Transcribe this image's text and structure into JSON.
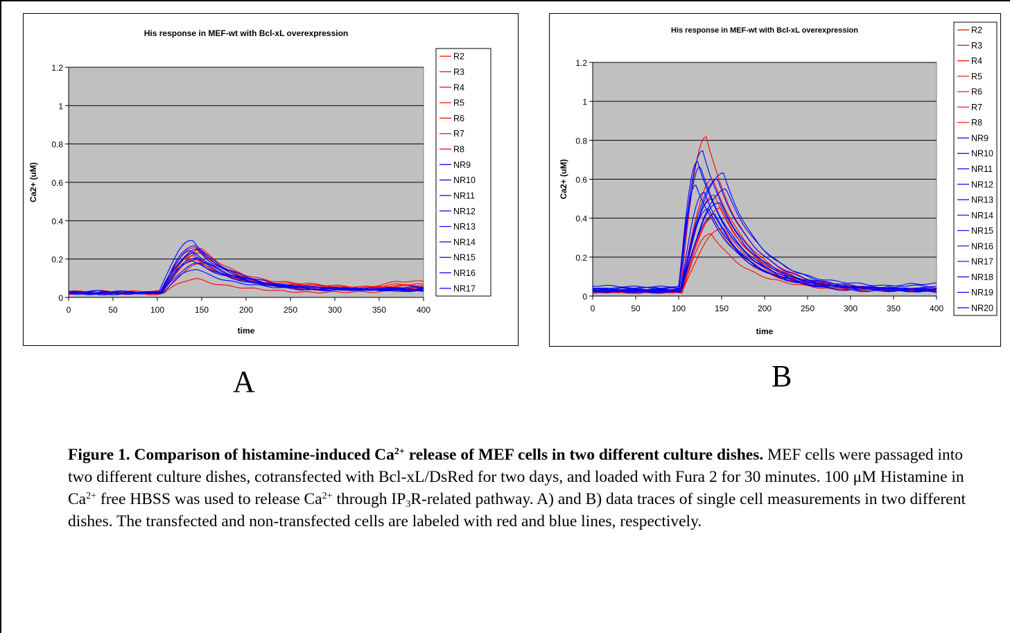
{
  "chart_data": [
    {
      "type": "line",
      "panel": "A",
      "title": "His response in MEF-wt with Bcl-xL overexpression",
      "xlabel": "time",
      "ylabel": "Ca2+ (uM)",
      "xlim": [
        0,
        400
      ],
      "ylim": [
        0,
        1.2
      ],
      "xticks": [
        "0",
        "50",
        "100",
        "150",
        "200",
        "250",
        "300",
        "350",
        "400"
      ],
      "yticks": [
        "0",
        "0.2",
        "0.4",
        "0.6",
        "0.8",
        "1",
        "1.2"
      ],
      "plot_background": "#c0c0c0",
      "gridlines": "horizontal",
      "legend_position": "right",
      "colors": {
        "transfected": "#ff0000",
        "non_transfected": "#0000ff"
      },
      "series": [
        {
          "name": "R2",
          "group": "transfected",
          "base": 0.03,
          "peak": 0.26,
          "peak_t": 143,
          "rise": 105,
          "tail": 0.05,
          "end": 0.065
        },
        {
          "name": "R3",
          "group": "transfected",
          "base": 0.025,
          "peak": 0.1,
          "peak_t": 145,
          "rise": 108,
          "tail": 0.025,
          "end": 0.035
        },
        {
          "name": "R4",
          "group": "transfected",
          "base": 0.02,
          "peak": 0.23,
          "peak_t": 150,
          "rise": 105,
          "tail": 0.04,
          "end": 0.055
        },
        {
          "name": "R5",
          "group": "transfected",
          "base": 0.03,
          "peak": 0.2,
          "peak_t": 145,
          "rise": 106,
          "tail": 0.035,
          "end": 0.05
        },
        {
          "name": "R6",
          "group": "transfected",
          "base": 0.03,
          "peak": 0.25,
          "peak_t": 150,
          "rise": 106,
          "tail": 0.055,
          "end": 0.08
        },
        {
          "name": "R7",
          "group": "transfected",
          "base": 0.025,
          "peak": 0.22,
          "peak_t": 140,
          "rise": 104,
          "tail": 0.035,
          "end": 0.045
        },
        {
          "name": "R8",
          "group": "transfected",
          "base": 0.02,
          "peak": 0.18,
          "peak_t": 155,
          "rise": 106,
          "tail": 0.05,
          "end": 0.06
        },
        {
          "name": "NR9",
          "group": "non_transfected",
          "base": 0.025,
          "peak": 0.3,
          "peak_t": 140,
          "rise": 102,
          "tail": 0.04,
          "end": 0.045
        },
        {
          "name": "NR10",
          "group": "non_transfected",
          "base": 0.03,
          "peak": 0.27,
          "peak_t": 142,
          "rise": 104,
          "tail": 0.04,
          "end": 0.045
        },
        {
          "name": "NR11",
          "group": "non_transfected",
          "base": 0.02,
          "peak": 0.25,
          "peak_t": 145,
          "rise": 104,
          "tail": 0.035,
          "end": 0.04
        },
        {
          "name": "NR12",
          "group": "non_transfected",
          "base": 0.025,
          "peak": 0.23,
          "peak_t": 143,
          "rise": 103,
          "tail": 0.04,
          "end": 0.04
        },
        {
          "name": "NR13",
          "group": "non_transfected",
          "base": 0.02,
          "peak": 0.21,
          "peak_t": 145,
          "rise": 105,
          "tail": 0.035,
          "end": 0.035
        },
        {
          "name": "NR14",
          "group": "non_transfected",
          "base": 0.03,
          "peak": 0.19,
          "peak_t": 140,
          "rise": 104,
          "tail": 0.045,
          "end": 0.05
        },
        {
          "name": "NR15",
          "group": "non_transfected",
          "base": 0.02,
          "peak": 0.18,
          "peak_t": 148,
          "rise": 105,
          "tail": 0.04,
          "end": 0.04
        },
        {
          "name": "NR16",
          "group": "non_transfected",
          "base": 0.025,
          "peak": 0.24,
          "peak_t": 138,
          "rise": 103,
          "tail": 0.04,
          "end": 0.035
        },
        {
          "name": "NR17",
          "group": "non_transfected",
          "base": 0.02,
          "peak": 0.15,
          "peak_t": 145,
          "rise": 106,
          "tail": 0.035,
          "end": 0.04
        }
      ]
    },
    {
      "type": "line",
      "panel": "B",
      "title": "His response in MEF-wt with Bcl-xL overexpression",
      "xlabel": "time",
      "ylabel": "Ca2+ (uM)",
      "xlim": [
        0,
        400
      ],
      "ylim": [
        0,
        1.2
      ],
      "xticks": [
        "0",
        "50",
        "100",
        "150",
        "200",
        "250",
        "300",
        "350",
        "400"
      ],
      "yticks": [
        "0",
        "0.2",
        "0.4",
        "0.6",
        "0.8",
        "1",
        "1.2"
      ],
      "plot_background": "#c0c0c0",
      "gridlines": "horizontal",
      "legend_position": "right",
      "colors": {
        "transfected": "#ff0000",
        "non_transfected": "#0000ff"
      },
      "series": [
        {
          "name": "R2",
          "group": "transfected",
          "base": 0.02,
          "peak": 0.82,
          "peak_t": 132,
          "rise": 102,
          "tail": 0.03,
          "end": 0.03
        },
        {
          "name": "R3",
          "group": "transfected",
          "base": 0.025,
          "peak": 0.6,
          "peak_t": 140,
          "rise": 103,
          "tail": 0.035,
          "end": 0.035
        },
        {
          "name": "R4",
          "group": "transfected",
          "base": 0.03,
          "peak": 0.52,
          "peak_t": 142,
          "rise": 103,
          "tail": 0.03,
          "end": 0.03
        },
        {
          "name": "R5",
          "group": "transfected",
          "base": 0.02,
          "peak": 0.45,
          "peak_t": 148,
          "rise": 104,
          "tail": 0.03,
          "end": 0.03
        },
        {
          "name": "R6",
          "group": "transfected",
          "base": 0.025,
          "peak": 0.4,
          "peak_t": 140,
          "rise": 104,
          "tail": 0.025,
          "end": 0.025
        },
        {
          "name": "R7",
          "group": "transfected",
          "base": 0.02,
          "peak": 0.35,
          "peak_t": 152,
          "rise": 104,
          "tail": 0.03,
          "end": 0.03
        },
        {
          "name": "R8",
          "group": "transfected",
          "base": 0.02,
          "peak": 0.32,
          "peak_t": 138,
          "rise": 104,
          "tail": 0.025,
          "end": 0.025
        },
        {
          "name": "NR9",
          "group": "non_transfected",
          "base": 0.04,
          "peak": 0.75,
          "peak_t": 128,
          "rise": 100,
          "tail": 0.03,
          "end": 0.04
        },
        {
          "name": "NR10",
          "group": "non_transfected",
          "base": 0.03,
          "peak": 0.69,
          "peak_t": 122,
          "rise": 100,
          "tail": 0.035,
          "end": 0.035
        },
        {
          "name": "NR11",
          "group": "non_transfected",
          "base": 0.025,
          "peak": 0.67,
          "peak_t": 125,
          "rise": 101,
          "tail": 0.03,
          "end": 0.03
        },
        {
          "name": "NR12",
          "group": "non_transfected",
          "base": 0.03,
          "peak": 0.63,
          "peak_t": 152,
          "rise": 103,
          "tail": 0.03,
          "end": 0.03
        },
        {
          "name": "NR13",
          "group": "non_transfected",
          "base": 0.025,
          "peak": 0.6,
          "peak_t": 145,
          "rise": 102,
          "tail": 0.035,
          "end": 0.035
        },
        {
          "name": "NR14",
          "group": "non_transfected",
          "base": 0.05,
          "peak": 0.57,
          "peak_t": 120,
          "rise": 100,
          "tail": 0.04,
          "end": 0.05
        },
        {
          "name": "NR15",
          "group": "non_transfected",
          "base": 0.03,
          "peak": 0.55,
          "peak_t": 155,
          "rise": 103,
          "tail": 0.045,
          "end": 0.06
        },
        {
          "name": "NR16",
          "group": "non_transfected",
          "base": 0.02,
          "peak": 0.53,
          "peak_t": 130,
          "rise": 102,
          "tail": 0.02,
          "end": 0.02
        },
        {
          "name": "NR17",
          "group": "non_transfected",
          "base": 0.03,
          "peak": 0.5,
          "peak_t": 138,
          "rise": 102,
          "tail": 0.025,
          "end": 0.025
        },
        {
          "name": "NR18",
          "group": "non_transfected",
          "base": 0.035,
          "peak": 0.48,
          "peak_t": 148,
          "rise": 103,
          "tail": 0.03,
          "end": 0.03
        },
        {
          "name": "NR19",
          "group": "non_transfected",
          "base": 0.04,
          "peak": 0.45,
          "peak_t": 135,
          "rise": 102,
          "tail": 0.03,
          "end": 0.03
        },
        {
          "name": "NR20",
          "group": "non_transfected",
          "base": 0.025,
          "peak": 0.42,
          "peak_t": 142,
          "rise": 103,
          "tail": 0.02,
          "end": 0.02
        }
      ]
    }
  ],
  "panel_labels": {
    "a": "A",
    "b": "B"
  },
  "caption": {
    "bold_1": "Figure 1. Comparison of histamine-induced Ca",
    "bold_sup": "2+",
    "bold_2": " release of MEF cells in two different culture dishes.",
    "t1": " MEF cells were passaged into two different culture dishes, cotransfected with Bcl-xL/DsRed for two days, and loaded with Fura 2 for 30 minutes. 100 μM Histamine in Ca",
    "sup1": "2+",
    "t2": " free HBSS was used to release Ca",
    "sup2": "2+",
    "t3": " through IP",
    "sub1": "3",
    "t4": "R-related pathway. A) and B) data traces of single cell measurements in two different dishes. The transfected and non-transfected cells are labeled with red and blue lines, respectively."
  }
}
